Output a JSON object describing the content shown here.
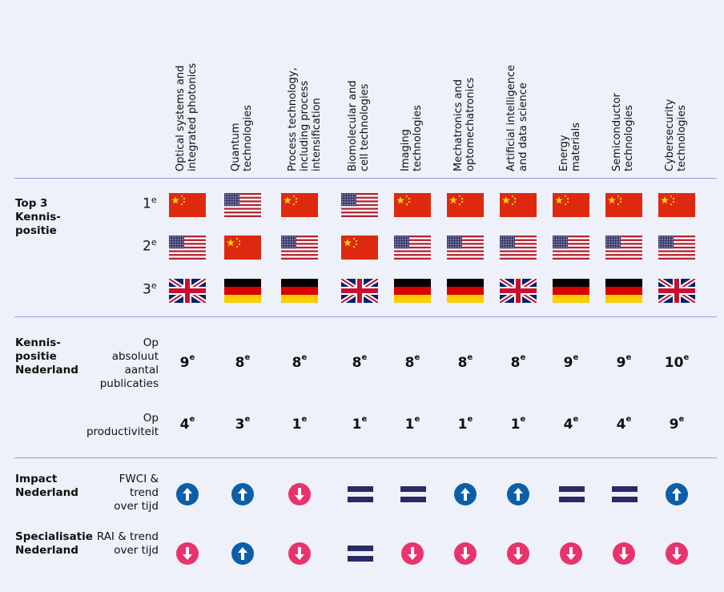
{
  "columns": [
    "Optical systems and\nintegrated photonics",
    "Quantum\ntechnologies",
    "Process technology,\nincluding process\nintensification",
    "Biomolecular and\ncell technologies",
    "Imaging\ntechnologies",
    "Mechatronics and\noptomechatronics",
    "Artificial intelligence\nand data science",
    "Energy\nmaterials",
    "Semiconductor\ntechnologies",
    "Cybersecurity\ntechnologies"
  ],
  "top3": {
    "label": "Top 3\nKennis-\npositie",
    "ranks": [
      "1",
      "2",
      "3"
    ],
    "rank_suffix": "e",
    "rank1": [
      "china",
      "usa",
      "china",
      "usa",
      "china",
      "china",
      "china",
      "china",
      "china",
      "china"
    ],
    "rank2": [
      "usa",
      "china",
      "usa",
      "china",
      "usa",
      "usa",
      "usa",
      "usa",
      "usa",
      "usa"
    ],
    "rank3": [
      "uk",
      "germany",
      "germany",
      "uk",
      "germany",
      "germany",
      "uk",
      "germany",
      "germany",
      "uk"
    ]
  },
  "kennispositie": {
    "label": "Kennis-\npositie\nNederland",
    "absolute_label": "Op\nabsoluut\naantal\npublicaties",
    "absolute": [
      "9",
      "8",
      "8",
      "8",
      "8",
      "8",
      "8",
      "9",
      "9",
      "10"
    ],
    "productivity_label": "Op\nproductiviteit",
    "productivity": [
      "4",
      "3",
      "1",
      "1",
      "1",
      "1",
      "1",
      "4",
      "4",
      "9"
    ],
    "suffix": "e"
  },
  "impact": {
    "label": "Impact\nNederland",
    "sublabel": "FWCI &\ntrend\nover tijd",
    "values": [
      "up",
      "up",
      "down",
      "equal",
      "equal",
      "up",
      "up",
      "equal",
      "equal",
      "up"
    ]
  },
  "specialisatie": {
    "label": "Specialisatie\nNederland",
    "sublabel": "RAI & trend\nover tijd",
    "values": [
      "down",
      "up",
      "down",
      "equal",
      "down",
      "down",
      "down",
      "down",
      "down",
      "down"
    ]
  },
  "colors": {
    "background": "#eef1f9",
    "rule": "#8fa3cf",
    "up": "#0b5fa8",
    "down": "#e8336d",
    "equal": "#2a2a66"
  },
  "icons": {
    "up": "arrow-up-circle-icon",
    "down": "arrow-down-circle-icon",
    "equal": "equal-bars-icon"
  }
}
